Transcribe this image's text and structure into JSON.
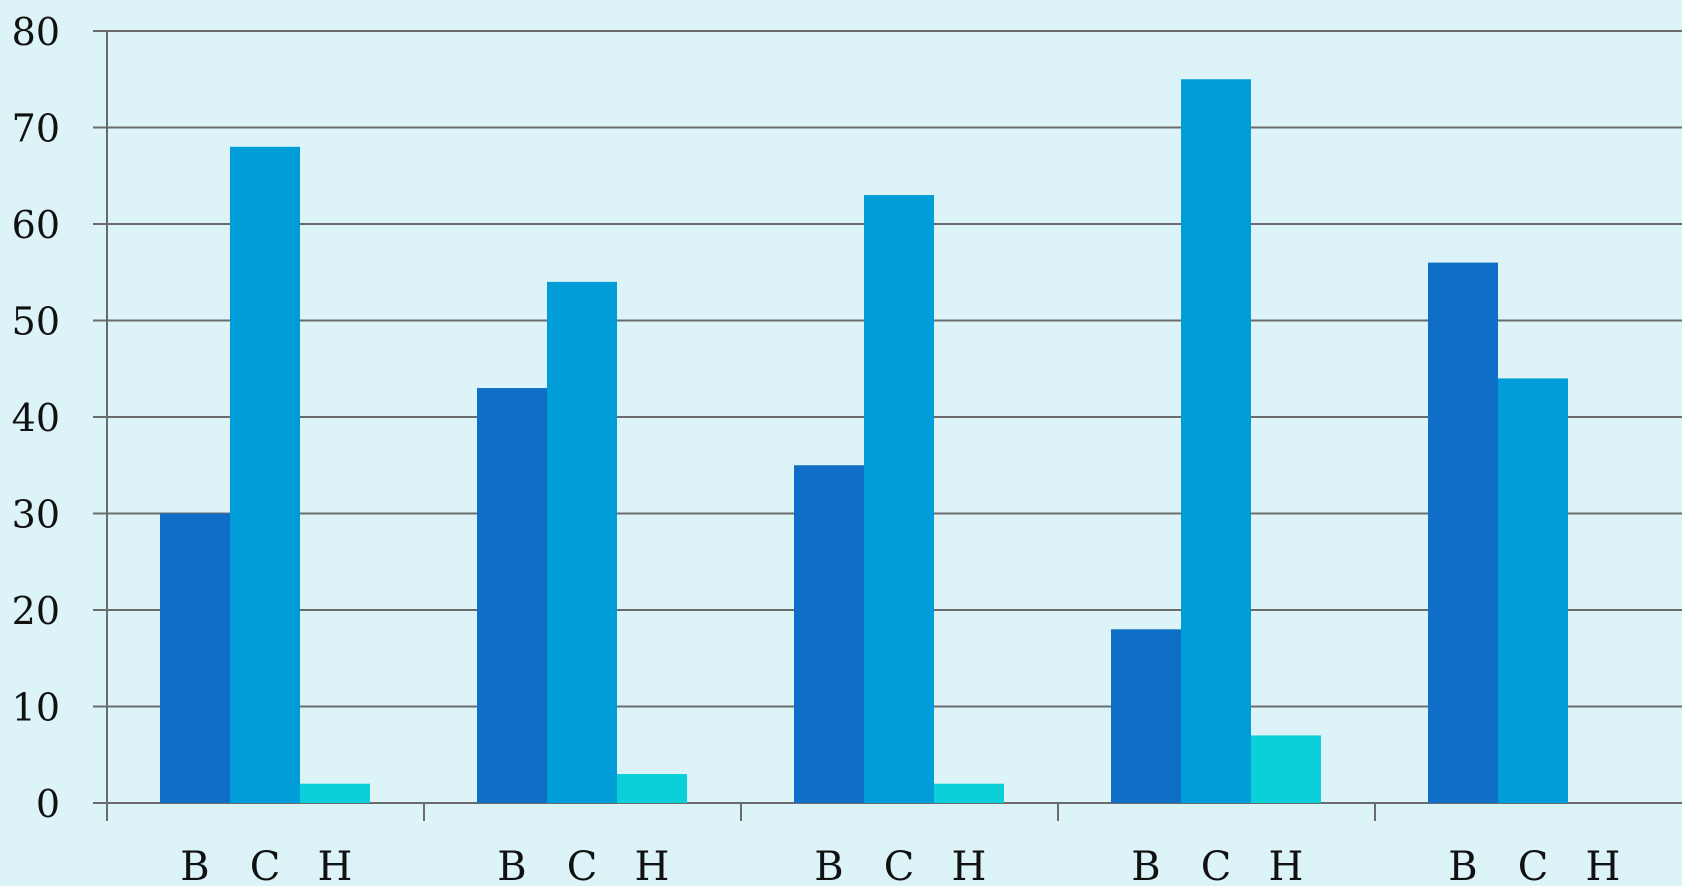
{
  "chart_data": {
    "type": "bar",
    "title": "",
    "xlabel": "",
    "ylabel": "",
    "ylim": [
      0,
      80
    ],
    "yticks": [
      0,
      10,
      20,
      30,
      40,
      50,
      60,
      70,
      80
    ],
    "grid": true,
    "legend": "none",
    "groups": [
      {
        "labels": [
          "B",
          "C",
          "H"
        ],
        "values": [
          30,
          68,
          2
        ]
      },
      {
        "labels": [
          "B",
          "C",
          "H"
        ],
        "values": [
          43,
          54,
          3
        ]
      },
      {
        "labels": [
          "B",
          "C",
          "H"
        ],
        "values": [
          35,
          63,
          2
        ]
      },
      {
        "labels": [
          "B",
          "C",
          "H"
        ],
        "values": [
          18,
          75,
          7
        ]
      },
      {
        "labels": [
          "B",
          "C",
          "H"
        ],
        "values": [
          56,
          44,
          0
        ]
      }
    ],
    "colors": {
      "B": "#0f6fc6",
      "C": "#009dd9",
      "H": "#0bd0d9",
      "grid": "#6b6b6b",
      "axis": "#6b6b6b",
      "background": "#dcf4f7"
    }
  }
}
